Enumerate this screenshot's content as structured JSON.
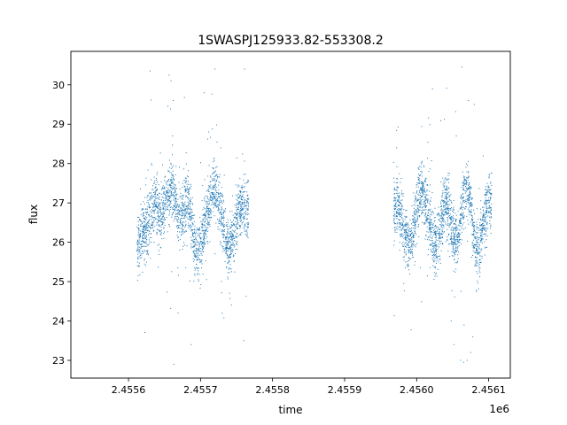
{
  "chart_data": {
    "type": "scatter",
    "title": "1SWASPJ125933.82-553308.2",
    "xlabel": "time",
    "ylabel": "flux",
    "x_offset_label": "1e6",
    "xlim": [
      2.45552,
      2.45613
    ],
    "ylim": [
      22.55,
      30.85
    ],
    "x_ticks": [
      2.4556,
      2.4557,
      2.4558,
      2.4559,
      2.456,
      2.4561
    ],
    "x_tick_labels": [
      "2.4556",
      "2.4557",
      "2.4558",
      "2.4559",
      "2.4560",
      "2.4561"
    ],
    "y_ticks": [
      23,
      24,
      25,
      26,
      27,
      28,
      29,
      30
    ],
    "y_tick_labels": [
      "23",
      "24",
      "25",
      "26",
      "27",
      "28",
      "29",
      "30"
    ],
    "grid": false,
    "legend": "none",
    "marker_color": "#1f77b4",
    "series": [
      {
        "segments": [
          {
            "x_start": 2.455612,
            "x_end": 2.455767,
            "mean": [
              26.0,
              26.1,
              26.3,
              26.4,
              26.6,
              26.9,
              27.0,
              26.6,
              26.8,
              27.1,
              27.2,
              27.4,
              27.0,
              26.7,
              26.6,
              26.9,
              27.1,
              26.5,
              25.9,
              25.8,
              26.0,
              26.3,
              26.7,
              27.1,
              27.5,
              27.2,
              26.9,
              26.5,
              25.8,
              25.7,
              26.2,
              26.5,
              26.8,
              27.0,
              26.9,
              26.8
            ],
            "spread": 0.6,
            "n": 2200
          },
          {
            "x_start": 2.455968,
            "x_end": 2.456104,
            "mean": [
              26.9,
              27.0,
              26.8,
              26.5,
              26.1,
              25.9,
              26.1,
              26.5,
              27.0,
              27.3,
              27.2,
              26.8,
              26.4,
              26.0,
              25.9,
              26.3,
              26.7,
              27.0,
              26.8,
              26.4,
              26.1,
              26.0,
              26.6,
              27.2,
              27.4,
              27.0,
              26.3,
              25.8,
              25.9,
              26.4,
              26.8,
              27.0,
              27.1
            ],
            "spread": 0.6,
            "n": 2000
          }
        ],
        "sample_points": [
          {
            "x": 2.455659,
            "y": 30.1
          },
          {
            "x": 2.455662,
            "y": 29.6
          },
          {
            "x": 2.455661,
            "y": 28.7
          },
          {
            "x": 2.455705,
            "y": 29.8
          },
          {
            "x": 2.45572,
            "y": 30.4
          },
          {
            "x": 2.455728,
            "y": 28.4
          },
          {
            "x": 2.455733,
            "y": 27.7
          },
          {
            "x": 2.455761,
            "y": 30.4
          },
          {
            "x": 2.45563,
            "y": 30.35
          },
          {
            "x": 2.455663,
            "y": 22.9
          },
          {
            "x": 2.455687,
            "y": 23.4
          },
          {
            "x": 2.45573,
            "y": 24.2
          },
          {
            "x": 2.45576,
            "y": 23.5
          },
          {
            "x": 2.456022,
            "y": 29.9
          },
          {
            "x": 2.456055,
            "y": 28.7
          },
          {
            "x": 2.45608,
            "y": 29.5
          },
          {
            "x": 2.456063,
            "y": 30.45
          },
          {
            "x": 2.456072,
            "y": 29.6
          },
          {
            "x": 2.456048,
            "y": 24.0
          },
          {
            "x": 2.456052,
            "y": 23.4
          },
          {
            "x": 2.456061,
            "y": 23.0
          },
          {
            "x": 2.45607,
            "y": 23.0
          },
          {
            "x": 2.456075,
            "y": 23.2
          },
          {
            "x": 2.456078,
            "y": 23.6
          },
          {
            "x": 2.456065,
            "y": 22.95
          }
        ]
      }
    ]
  }
}
